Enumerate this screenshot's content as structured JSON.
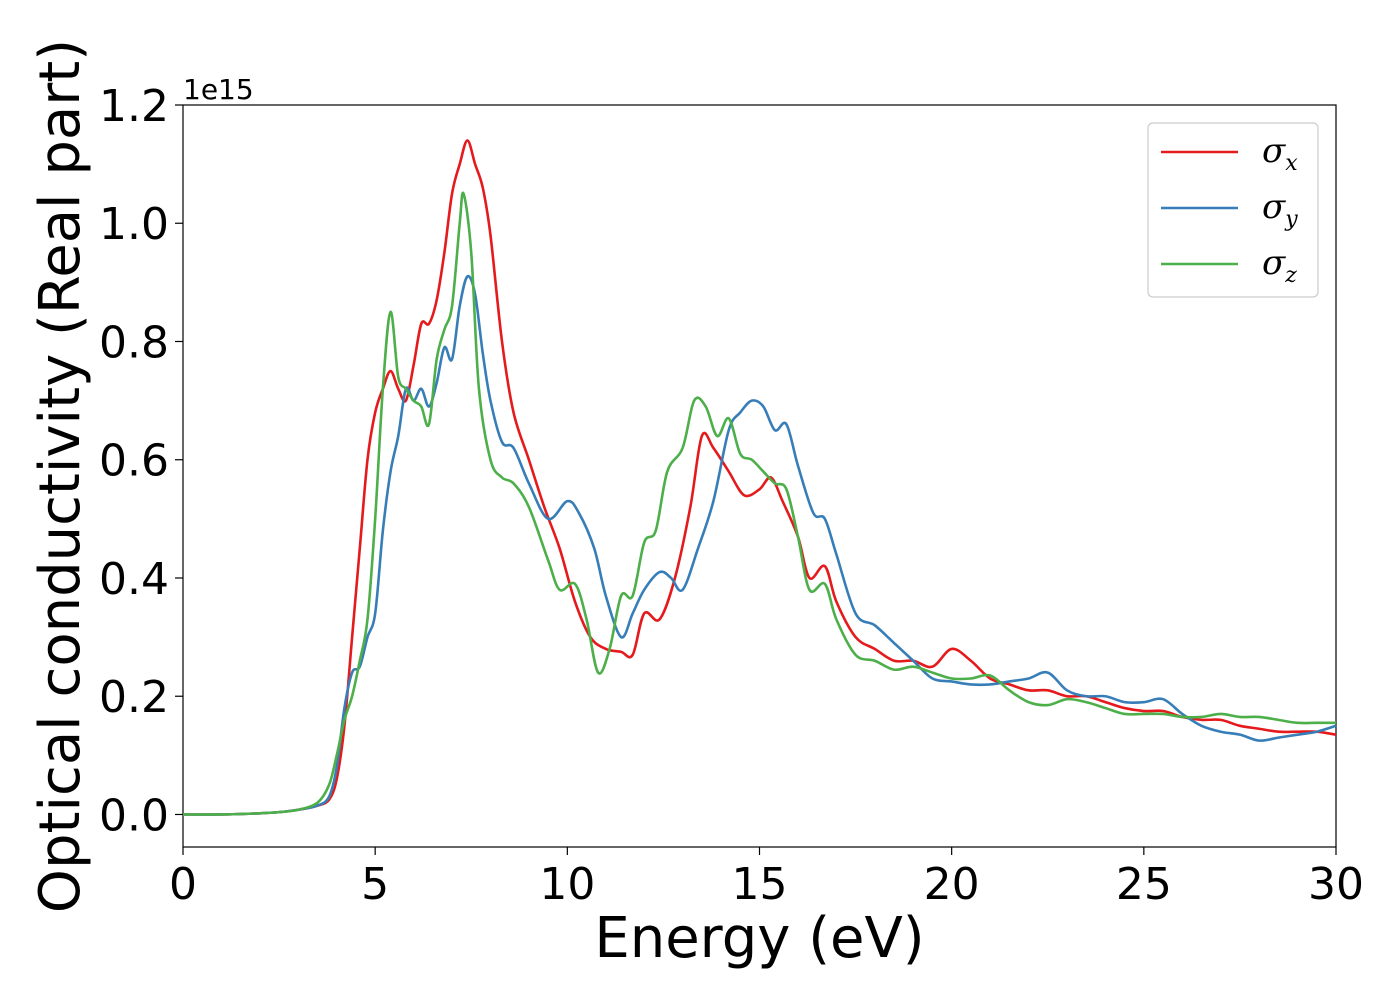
{
  "chart_data": {
    "type": "line",
    "title": "",
    "xlabel": "Energy (eV)",
    "ylabel": "Optical conductivity (Real part)",
    "y_offset_label": "1e15",
    "xlim": [
      0,
      30
    ],
    "ylim": [
      -0.055,
      1.2
    ],
    "x_ticks": [
      0,
      5,
      10,
      15,
      20,
      25,
      30
    ],
    "x_tick_labels": [
      "0",
      "5",
      "10",
      "15",
      "20",
      "25",
      "30"
    ],
    "y_ticks": [
      0.0,
      0.2,
      0.4,
      0.6,
      0.8,
      1.0,
      1.2
    ],
    "y_tick_labels": [
      "0.0",
      "0.2",
      "0.4",
      "0.6",
      "0.8",
      "1.0",
      "1.2"
    ],
    "grid": false,
    "legend_position": "top-right",
    "series": [
      {
        "name": "σx",
        "symbol": "σ",
        "subscript": "x",
        "color": "#e41a1c",
        "points": [
          [
            0,
            0.0
          ],
          [
            1,
            0.0
          ],
          [
            2,
            0.002
          ],
          [
            2.5,
            0.004
          ],
          [
            3,
            0.008
          ],
          [
            3.5,
            0.015
          ],
          [
            3.8,
            0.025
          ],
          [
            4.0,
            0.06
          ],
          [
            4.2,
            0.15
          ],
          [
            4.4,
            0.3
          ],
          [
            4.6,
            0.45
          ],
          [
            4.8,
            0.6
          ],
          [
            5.0,
            0.68
          ],
          [
            5.2,
            0.72
          ],
          [
            5.4,
            0.75
          ],
          [
            5.6,
            0.72
          ],
          [
            5.8,
            0.7
          ],
          [
            6.0,
            0.76
          ],
          [
            6.2,
            0.83
          ],
          [
            6.4,
            0.83
          ],
          [
            6.6,
            0.87
          ],
          [
            6.8,
            0.95
          ],
          [
            7.0,
            1.05
          ],
          [
            7.2,
            1.1
          ],
          [
            7.4,
            1.14
          ],
          [
            7.6,
            1.1
          ],
          [
            7.8,
            1.06
          ],
          [
            8.0,
            0.98
          ],
          [
            8.3,
            0.8
          ],
          [
            8.6,
            0.68
          ],
          [
            9.0,
            0.6
          ],
          [
            9.4,
            0.52
          ],
          [
            9.8,
            0.45
          ],
          [
            10.2,
            0.36
          ],
          [
            10.6,
            0.3
          ],
          [
            11.0,
            0.28
          ],
          [
            11.4,
            0.275
          ],
          [
            11.7,
            0.27
          ],
          [
            12.0,
            0.34
          ],
          [
            12.4,
            0.33
          ],
          [
            12.8,
            0.4
          ],
          [
            13.2,
            0.52
          ],
          [
            13.5,
            0.64
          ],
          [
            13.8,
            0.62
          ],
          [
            14.2,
            0.58
          ],
          [
            14.6,
            0.54
          ],
          [
            15.0,
            0.55
          ],
          [
            15.3,
            0.57
          ],
          [
            15.6,
            0.53
          ],
          [
            16.0,
            0.47
          ],
          [
            16.3,
            0.4
          ],
          [
            16.7,
            0.42
          ],
          [
            17.0,
            0.36
          ],
          [
            17.5,
            0.3
          ],
          [
            18.0,
            0.28
          ],
          [
            18.5,
            0.26
          ],
          [
            19.0,
            0.26
          ],
          [
            19.5,
            0.25
          ],
          [
            20.0,
            0.28
          ],
          [
            20.5,
            0.26
          ],
          [
            21.0,
            0.23
          ],
          [
            21.5,
            0.22
          ],
          [
            22.0,
            0.21
          ],
          [
            22.5,
            0.21
          ],
          [
            23.0,
            0.2
          ],
          [
            23.5,
            0.2
          ],
          [
            24.0,
            0.19
          ],
          [
            24.5,
            0.18
          ],
          [
            25.0,
            0.175
          ],
          [
            25.5,
            0.175
          ],
          [
            26.0,
            0.165
          ],
          [
            26.5,
            0.16
          ],
          [
            27.0,
            0.16
          ],
          [
            27.5,
            0.15
          ],
          [
            28.0,
            0.145
          ],
          [
            28.5,
            0.14
          ],
          [
            29.0,
            0.14
          ],
          [
            29.5,
            0.14
          ],
          [
            30.0,
            0.135
          ]
        ]
      },
      {
        "name": "σy",
        "symbol": "σ",
        "subscript": "y",
        "color": "#377eb8",
        "points": [
          [
            0,
            0.0
          ],
          [
            1,
            0.0
          ],
          [
            2,
            0.002
          ],
          [
            2.5,
            0.004
          ],
          [
            3,
            0.008
          ],
          [
            3.5,
            0.015
          ],
          [
            3.8,
            0.03
          ],
          [
            4.0,
            0.08
          ],
          [
            4.2,
            0.18
          ],
          [
            4.4,
            0.24
          ],
          [
            4.6,
            0.25
          ],
          [
            4.8,
            0.3
          ],
          [
            5.0,
            0.34
          ],
          [
            5.2,
            0.48
          ],
          [
            5.4,
            0.58
          ],
          [
            5.6,
            0.64
          ],
          [
            5.8,
            0.72
          ],
          [
            6.0,
            0.7
          ],
          [
            6.2,
            0.72
          ],
          [
            6.4,
            0.69
          ],
          [
            6.6,
            0.73
          ],
          [
            6.8,
            0.79
          ],
          [
            7.0,
            0.77
          ],
          [
            7.2,
            0.86
          ],
          [
            7.4,
            0.91
          ],
          [
            7.6,
            0.88
          ],
          [
            7.8,
            0.78
          ],
          [
            8.0,
            0.7
          ],
          [
            8.3,
            0.63
          ],
          [
            8.6,
            0.62
          ],
          [
            9.0,
            0.56
          ],
          [
            9.5,
            0.5
          ],
          [
            10.0,
            0.53
          ],
          [
            10.3,
            0.51
          ],
          [
            10.7,
            0.45
          ],
          [
            11.0,
            0.37
          ],
          [
            11.4,
            0.3
          ],
          [
            11.7,
            0.34
          ],
          [
            12.0,
            0.38
          ],
          [
            12.4,
            0.41
          ],
          [
            12.7,
            0.4
          ],
          [
            13.0,
            0.38
          ],
          [
            13.4,
            0.45
          ],
          [
            13.8,
            0.53
          ],
          [
            14.2,
            0.65
          ],
          [
            14.5,
            0.68
          ],
          [
            14.8,
            0.7
          ],
          [
            15.1,
            0.69
          ],
          [
            15.4,
            0.65
          ],
          [
            15.7,
            0.66
          ],
          [
            16.0,
            0.59
          ],
          [
            16.4,
            0.51
          ],
          [
            16.7,
            0.5
          ],
          [
            17.0,
            0.44
          ],
          [
            17.5,
            0.34
          ],
          [
            18.0,
            0.32
          ],
          [
            18.5,
            0.29
          ],
          [
            19.0,
            0.26
          ],
          [
            19.5,
            0.23
          ],
          [
            20.0,
            0.225
          ],
          [
            20.5,
            0.22
          ],
          [
            21.0,
            0.22
          ],
          [
            21.5,
            0.225
          ],
          [
            22.0,
            0.23
          ],
          [
            22.5,
            0.24
          ],
          [
            23.0,
            0.21
          ],
          [
            23.5,
            0.2
          ],
          [
            24.0,
            0.2
          ],
          [
            24.5,
            0.19
          ],
          [
            25.0,
            0.19
          ],
          [
            25.5,
            0.195
          ],
          [
            26.0,
            0.17
          ],
          [
            26.5,
            0.15
          ],
          [
            27.0,
            0.14
          ],
          [
            27.5,
            0.135
          ],
          [
            28.0,
            0.125
          ],
          [
            28.5,
            0.13
          ],
          [
            29.0,
            0.135
          ],
          [
            29.5,
            0.14
          ],
          [
            30.0,
            0.15
          ]
        ]
      },
      {
        "name": "σz",
        "symbol": "σ",
        "subscript": "z",
        "color": "#4daf4a",
        "points": [
          [
            0,
            0.0
          ],
          [
            1,
            0.0
          ],
          [
            2,
            0.002
          ],
          [
            2.5,
            0.004
          ],
          [
            3,
            0.008
          ],
          [
            3.5,
            0.02
          ],
          [
            3.8,
            0.05
          ],
          [
            4.0,
            0.1
          ],
          [
            4.2,
            0.16
          ],
          [
            4.4,
            0.2
          ],
          [
            4.6,
            0.26
          ],
          [
            4.8,
            0.33
          ],
          [
            5.0,
            0.5
          ],
          [
            5.2,
            0.72
          ],
          [
            5.4,
            0.85
          ],
          [
            5.6,
            0.74
          ],
          [
            5.8,
            0.72
          ],
          [
            6.0,
            0.7
          ],
          [
            6.2,
            0.69
          ],
          [
            6.4,
            0.66
          ],
          [
            6.6,
            0.77
          ],
          [
            6.8,
            0.82
          ],
          [
            7.0,
            0.86
          ],
          [
            7.2,
            1.0
          ],
          [
            7.3,
            1.05
          ],
          [
            7.5,
            0.95
          ],
          [
            7.7,
            0.72
          ],
          [
            8.0,
            0.6
          ],
          [
            8.3,
            0.57
          ],
          [
            8.6,
            0.56
          ],
          [
            9.0,
            0.52
          ],
          [
            9.5,
            0.43
          ],
          [
            9.8,
            0.38
          ],
          [
            10.2,
            0.39
          ],
          [
            10.5,
            0.33
          ],
          [
            10.8,
            0.24
          ],
          [
            11.1,
            0.28
          ],
          [
            11.4,
            0.37
          ],
          [
            11.7,
            0.37
          ],
          [
            12.0,
            0.46
          ],
          [
            12.3,
            0.48
          ],
          [
            12.6,
            0.58
          ],
          [
            13.0,
            0.62
          ],
          [
            13.3,
            0.7
          ],
          [
            13.6,
            0.69
          ],
          [
            13.9,
            0.64
          ],
          [
            14.2,
            0.67
          ],
          [
            14.5,
            0.61
          ],
          [
            14.8,
            0.6
          ],
          [
            15.1,
            0.58
          ],
          [
            15.4,
            0.56
          ],
          [
            15.7,
            0.55
          ],
          [
            16.0,
            0.47
          ],
          [
            16.3,
            0.38
          ],
          [
            16.7,
            0.39
          ],
          [
            17.0,
            0.33
          ],
          [
            17.5,
            0.27
          ],
          [
            18.0,
            0.26
          ],
          [
            18.5,
            0.245
          ],
          [
            19.0,
            0.25
          ],
          [
            19.5,
            0.24
          ],
          [
            20.0,
            0.23
          ],
          [
            20.5,
            0.23
          ],
          [
            21.0,
            0.235
          ],
          [
            21.5,
            0.21
          ],
          [
            22.0,
            0.19
          ],
          [
            22.5,
            0.185
          ],
          [
            23.0,
            0.195
          ],
          [
            23.5,
            0.19
          ],
          [
            24.0,
            0.18
          ],
          [
            24.5,
            0.17
          ],
          [
            25.0,
            0.17
          ],
          [
            25.5,
            0.17
          ],
          [
            26.0,
            0.165
          ],
          [
            26.5,
            0.165
          ],
          [
            27.0,
            0.17
          ],
          [
            27.5,
            0.165
          ],
          [
            28.0,
            0.165
          ],
          [
            28.5,
            0.16
          ],
          [
            29.0,
            0.155
          ],
          [
            29.5,
            0.155
          ],
          [
            30.0,
            0.155
          ]
        ]
      }
    ]
  }
}
